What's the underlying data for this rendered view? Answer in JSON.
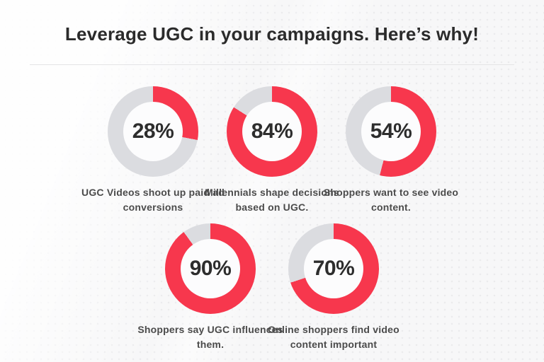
{
  "title": "Leverage UGC in your campaigns. Here’s why!",
  "colors": {
    "accent_red": "#F7374D",
    "ring_gray": "#DBDCE0",
    "donut_hole": "#FCFCFD",
    "background": "#F7F7F8",
    "title_text": "#2B2B2B",
    "caption_text": "#4B4B4B",
    "divider": "#E4E4E6"
  },
  "chart_data": [
    {
      "type": "pie",
      "donut": true,
      "percent": 28,
      "value_label": "28%",
      "caption": "UGC Videos shoot up paid ad conversions",
      "start": "12 o'clock",
      "direction": "clockwise",
      "slices": [
        {
          "label": "highlighted",
          "value": 28,
          "color": "#F7374D"
        },
        {
          "label": "remainder",
          "value": 72,
          "color": "#DBDCE0"
        }
      ]
    },
    {
      "type": "pie",
      "donut": true,
      "percent": 84,
      "value_label": "84%",
      "caption": "Millennials shape decisions based on UGC.",
      "start": "12 o'clock",
      "direction": "clockwise",
      "slices": [
        {
          "label": "highlighted",
          "value": 84,
          "color": "#F7374D"
        },
        {
          "label": "remainder",
          "value": 16,
          "color": "#DBDCE0"
        }
      ]
    },
    {
      "type": "pie",
      "donut": true,
      "percent": 54,
      "value_label": "54%",
      "caption": "Shoppers want to see video content.",
      "start": "12 o'clock",
      "direction": "clockwise",
      "slices": [
        {
          "label": "highlighted",
          "value": 54,
          "color": "#F7374D"
        },
        {
          "label": "remainder",
          "value": 46,
          "color": "#DBDCE0"
        }
      ]
    },
    {
      "type": "pie",
      "donut": true,
      "percent": 90,
      "value_label": "90%",
      "caption": "Shoppers say UGC influences them.",
      "start": "12 o'clock",
      "direction": "clockwise",
      "slices": [
        {
          "label": "highlighted",
          "value": 90,
          "color": "#F7374D"
        },
        {
          "label": "remainder",
          "value": 10,
          "color": "#DBDCE0"
        }
      ]
    },
    {
      "type": "pie",
      "donut": true,
      "percent": 70,
      "value_label": "70%",
      "caption": "Online shoppers find video content important",
      "start": "12 o'clock",
      "direction": "clockwise",
      "slices": [
        {
          "label": "highlighted",
          "value": 70,
          "color": "#F7374D"
        },
        {
          "label": "remainder",
          "value": 30,
          "color": "#DBDCE0"
        }
      ]
    }
  ]
}
